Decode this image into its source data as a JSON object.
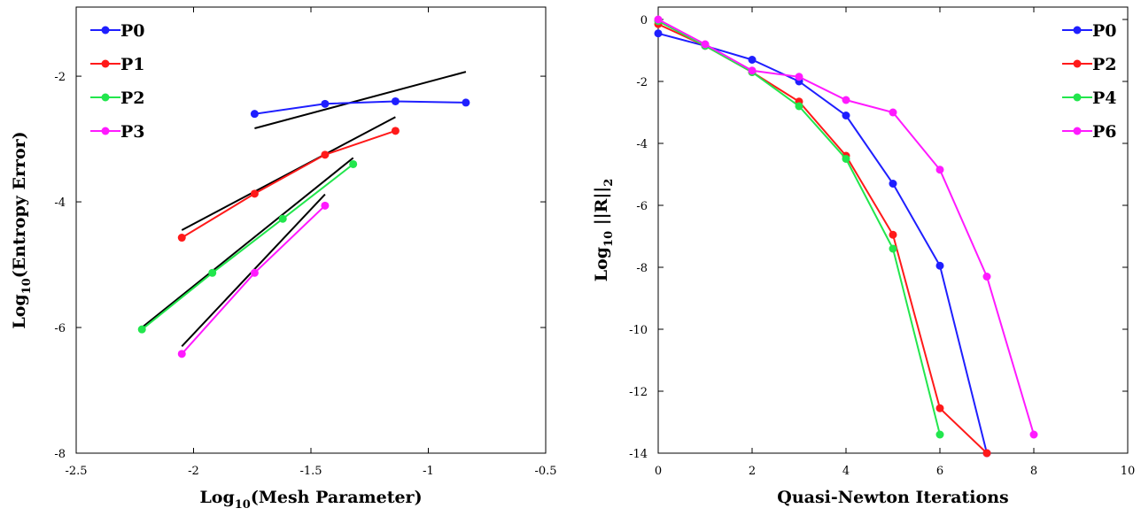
{
  "chart_data": [
    {
      "type": "line",
      "xlabel": "Log10(Mesh Parameter)",
      "ylabel": "Log10(Entropy Error)",
      "xlabel_parts": [
        "Log",
        "10",
        "(Mesh Parameter)"
      ],
      "ylabel_parts": [
        "Log",
        "10",
        "(Entropy Error)"
      ],
      "xlim": [
        -2.5,
        -0.5
      ],
      "ylim": [
        -8,
        -0.9
      ],
      "xticks": [
        -2.5,
        -2,
        -1.5,
        -1,
        -0.5
      ],
      "xtick_labels": [
        "-2.5",
        "-2",
        "-1.5",
        "-1",
        "-0.5"
      ],
      "yticks": [
        -8,
        -6,
        -4,
        -2
      ],
      "ytick_labels": [
        "-8",
        "-6",
        "-4",
        "-2"
      ],
      "grid": false,
      "legend": "top-left",
      "series": [
        {
          "name": "P0",
          "color": "#1f1fff",
          "x": [
            -1.74,
            -1.44,
            -1.14,
            -0.84
          ],
          "y": [
            -2.6,
            -2.44,
            -2.4,
            -2.42
          ]
        },
        {
          "name": "P1",
          "color": "#ff1a1a",
          "x": [
            -2.05,
            -1.74,
            -1.44,
            -1.14
          ],
          "y": [
            -4.57,
            -3.87,
            -3.25,
            -2.87
          ]
        },
        {
          "name": "P2",
          "color": "#22e64d",
          "x": [
            -2.22,
            -1.92,
            -1.62,
            -1.32
          ],
          "y": [
            -6.03,
            -5.13,
            -4.27,
            -3.4
          ]
        },
        {
          "name": "P3",
          "color": "#ff1aff",
          "x": [
            -2.05,
            -1.74,
            -1.44
          ],
          "y": [
            -6.42,
            -5.13,
            -4.06
          ]
        }
      ],
      "reference_lines": [
        {
          "color": "#000000",
          "x": [
            -1.74,
            -0.84
          ],
          "y": [
            -2.83,
            -1.93
          ]
        },
        {
          "color": "#000000",
          "x": [
            -2.05,
            -1.14
          ],
          "y": [
            -4.45,
            -2.65
          ]
        },
        {
          "color": "#000000",
          "x": [
            -2.22,
            -1.32
          ],
          "y": [
            -6.0,
            -3.3
          ]
        },
        {
          "color": "#000000",
          "x": [
            -2.05,
            -1.44
          ],
          "y": [
            -6.3,
            -3.88
          ]
        }
      ]
    },
    {
      "type": "line",
      "xlabel": "Quasi-Newton Iterations",
      "ylabel": "Log10 ||R||2",
      "ylabel_parts": [
        "Log",
        "10",
        " ||R||",
        "2"
      ],
      "xlim": [
        0,
        10
      ],
      "ylim": [
        -14,
        0.4
      ],
      "xticks": [
        0,
        2,
        4,
        6,
        8,
        10
      ],
      "xtick_labels": [
        "0",
        "2",
        "4",
        "6",
        "8",
        "10"
      ],
      "yticks": [
        -14,
        -12,
        -10,
        -8,
        -6,
        -4,
        -2,
        0
      ],
      "ytick_labels": [
        "-14",
        "-12",
        "-10",
        "-8",
        "-6",
        "-4",
        "-2",
        "0"
      ],
      "grid": false,
      "legend": "top-right",
      "series": [
        {
          "name": "P0",
          "color": "#1f1fff",
          "x": [
            0,
            1,
            2,
            3,
            4,
            5,
            6,
            7
          ],
          "y": [
            -0.45,
            -0.85,
            -1.3,
            -2.0,
            -3.1,
            -5.3,
            -7.95,
            -14.0
          ]
        },
        {
          "name": "P2",
          "color": "#ff1a1a",
          "x": [
            0,
            1,
            2,
            3,
            4,
            5,
            6,
            7
          ],
          "y": [
            -0.15,
            -0.85,
            -1.7,
            -2.65,
            -4.4,
            -6.95,
            -12.55,
            -14.0
          ]
        },
        {
          "name": "P4",
          "color": "#22e64d",
          "x": [
            0,
            1,
            2,
            3,
            4,
            5,
            6
          ],
          "y": [
            -0.05,
            -0.85,
            -1.7,
            -2.8,
            -4.5,
            -7.4,
            -13.4
          ]
        },
        {
          "name": "P6",
          "color": "#ff1aff",
          "x": [
            0,
            1,
            2,
            3,
            4,
            5,
            6,
            7,
            8
          ],
          "y": [
            0.0,
            -0.8,
            -1.65,
            -1.85,
            -2.6,
            -3.0,
            -4.85,
            -8.3,
            -13.4
          ]
        }
      ]
    }
  ]
}
